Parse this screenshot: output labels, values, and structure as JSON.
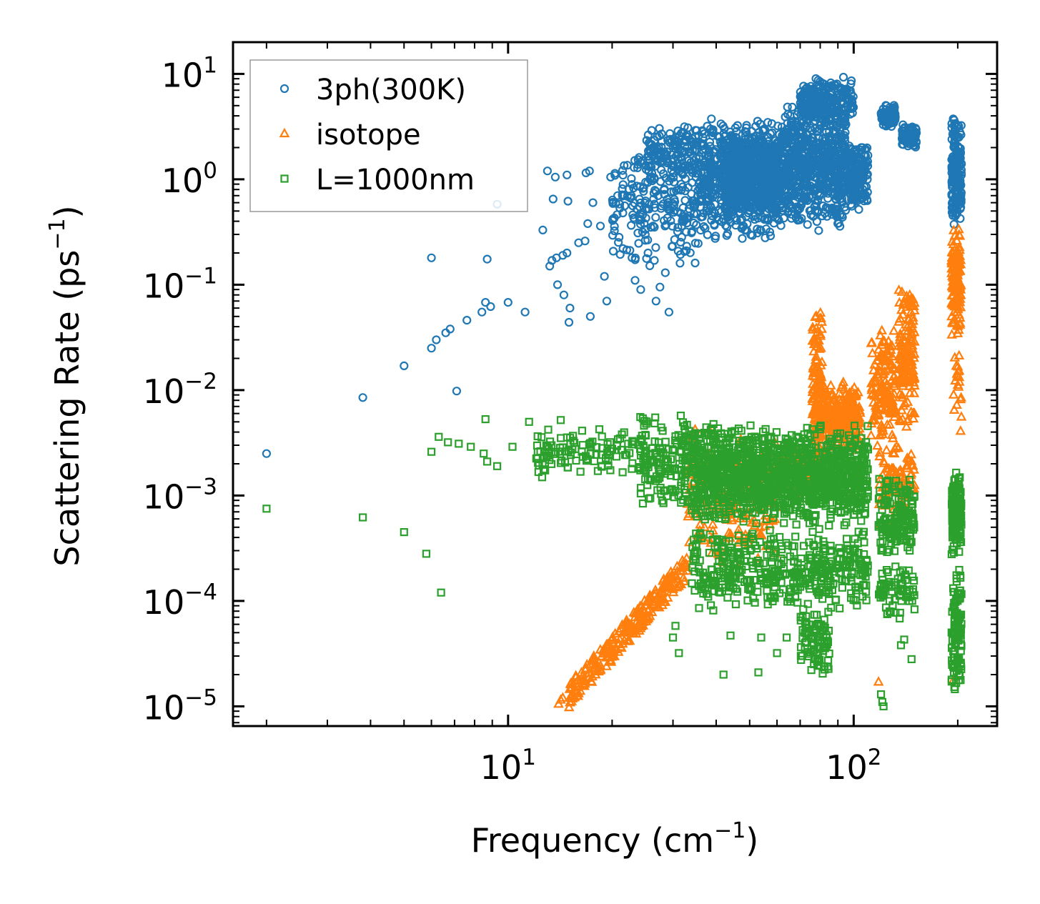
{
  "chart_data": {
    "type": "scatter",
    "xscale": "log",
    "yscale": "log",
    "xlabel": "Frequency (cm",
    "xlabel_sup": "−1",
    "xlabel_end": ")",
    "ylabel": "Scattering Rate (ps",
    "ylabel_sup": "−1",
    "ylabel_end": ")",
    "xlim": [
      1.6,
      260
    ],
    "ylim": [
      6.5e-06,
      20
    ],
    "x_ticks": [
      {
        "value": 10,
        "base": "10",
        "exp": "1"
      },
      {
        "value": 100,
        "base": "10",
        "exp": "2"
      }
    ],
    "y_ticks": [
      {
        "value": 10,
        "base": "10",
        "exp": "1"
      },
      {
        "value": 1,
        "base": "10",
        "exp": "0"
      },
      {
        "value": 0.1,
        "base": "10",
        "exp": "−1"
      },
      {
        "value": 0.01,
        "base": "10",
        "exp": "−2"
      },
      {
        "value": 0.001,
        "base": "10",
        "exp": "−3"
      },
      {
        "value": 0.0001,
        "base": "10",
        "exp": "−4"
      },
      {
        "value": 1e-05,
        "base": "10",
        "exp": "−5"
      }
    ],
    "legend_position": "top-left",
    "series": [
      {
        "name": "3ph(300K)",
        "marker": "circle",
        "color": "#1f77b4",
        "points": [
          [
            2.0,
            0.0025
          ],
          [
            3.8,
            0.0085
          ],
          [
            5.0,
            0.017
          ],
          [
            6.0,
            0.025
          ],
          [
            6.2,
            0.03
          ],
          [
            6.6,
            0.035
          ],
          [
            6.8,
            0.038
          ],
          [
            7.6,
            0.046
          ],
          [
            8.4,
            0.055
          ],
          [
            8.6,
            0.068
          ],
          [
            8.9,
            0.062
          ],
          [
            10.0,
            0.068
          ],
          [
            11.2,
            0.055
          ],
          [
            7.1,
            0.0098
          ],
          [
            6.0,
            0.18
          ],
          [
            8.7,
            0.175
          ],
          [
            9.3,
            0.58
          ],
          [
            12.6,
            0.33
          ],
          [
            13.2,
            0.15
          ],
          [
            13.4,
            0.17
          ],
          [
            13.8,
            0.18
          ],
          [
            14.4,
            0.19
          ],
          [
            14.8,
            0.2
          ],
          [
            13.9,
            0.1
          ],
          [
            14.5,
            0.08
          ],
          [
            15.1,
            0.06
          ],
          [
            15.0,
            0.044
          ],
          [
            17.3,
            0.05
          ],
          [
            19.3,
            0.07
          ],
          [
            13.0,
            1.2
          ],
          [
            13.5,
            0.65
          ],
          [
            13.7,
            1.05
          ],
          [
            14.8,
            1.1
          ],
          [
            14.9,
            0.62
          ],
          [
            16.0,
            0.25
          ],
          [
            16.8,
            1.15
          ],
          [
            17.2,
            1.2
          ],
          [
            17.6,
            0.6
          ],
          [
            16.7,
            0.26
          ],
          [
            17.0,
            0.38
          ],
          [
            18.5,
            0.36
          ],
          [
            19.0,
            0.12
          ],
          [
            19.8,
            1.05
          ],
          [
            20.3,
            0.43
          ],
          [
            21.5,
            0.22
          ],
          [
            23.3,
            0.11
          ],
          [
            24.2,
            0.09
          ],
          [
            25.4,
            0.2
          ],
          [
            26.5,
            0.17
          ],
          [
            28.5,
            0.13
          ],
          [
            29.2,
            0.055
          ],
          [
            27.5,
            0.095
          ],
          [
            26.8,
            0.07
          ],
          [
            29.8,
            0.23
          ]
        ],
        "clusters": [
          {
            "x": [
              20,
              36
            ],
            "logy": [
              -0.9,
              0.4
            ],
            "n": 220
          },
          {
            "x": [
              25,
              36
            ],
            "logy": [
              -0.05,
              0.55
            ],
            "n": 150
          },
          {
            "x": [
              36,
              62
            ],
            "logy": [
              -0.6,
              0.6
            ],
            "n": 650
          },
          {
            "x": [
              42,
              60
            ],
            "logy": [
              -0.35,
              0.45
            ],
            "n": 500
          },
          {
            "x": [
              62,
              95
            ],
            "logy": [
              -0.5,
              0.75
            ],
            "n": 650
          },
          {
            "x": [
              70,
              100
            ],
            "logy": [
              0.5,
              0.98
            ],
            "n": 260
          },
          {
            "x": [
              95,
              110
            ],
            "logy": [
              -0.3,
              0.35
            ],
            "n": 200
          },
          {
            "x": [
              120,
              132
            ],
            "logy": [
              0.48,
              0.72
            ],
            "n": 90
          },
          {
            "x": [
              138,
              152
            ],
            "logy": [
              0.3,
              0.52
            ],
            "n": 70
          },
          {
            "x": [
              192,
              205
            ],
            "logy": [
              -0.5,
              0.65
            ],
            "n": 170
          }
        ]
      },
      {
        "name": "isotope",
        "marker": "triangle",
        "color": "#ff7f0e",
        "points": [
          [
            14.0,
            1.05e-05
          ],
          [
            14.2,
            1.15e-05
          ],
          [
            14.4,
            1.2e-05
          ],
          [
            15.3,
            1.3e-05
          ],
          [
            118,
            1.7e-05
          ],
          [
            122,
            0.0021
          ],
          [
            125,
            0.0018
          ],
          [
            128,
            0.0017
          ],
          [
            194,
            1.75e-05
          ]
        ],
        "clusters": [
          {
            "x": [
              15,
              33
            ],
            "logy": "line",
            "slope": 3.6,
            "ref_x": 20,
            "ref_logy": -4.45,
            "spread": 0.12,
            "n": 260
          },
          {
            "x": [
              33,
              60
            ],
            "logy": [
              -3.7,
              -2.3
            ],
            "n": 200
          },
          {
            "x": [
              60,
              80
            ],
            "logy": [
              -3.0,
              -2.5
            ],
            "n": 120
          },
          {
            "x": [
              76,
              81
            ],
            "logy": [
              -2.9,
              -1.15
            ],
            "n": 150
          },
          {
            "x": [
              80,
              105
            ],
            "logy": [
              -2.6,
              -1.9
            ],
            "n": 250
          },
          {
            "x": [
              112,
              132
            ],
            "logy": [
              -2.6,
              -1.35
            ],
            "n": 160
          },
          {
            "x": [
              135,
              150
            ],
            "logy": [
              -2.4,
              -0.92
            ],
            "n": 150
          },
          {
            "x": [
              118,
              150
            ],
            "logy": [
              -3.3,
              -2.5
            ],
            "n": 90
          },
          {
            "x": [
              192,
              204
            ],
            "logy": [
              -1.5,
              -0.45
            ],
            "n": 130
          },
          {
            "x": [
              194,
              205
            ],
            "logy": [
              -2.4,
              -1.5
            ],
            "n": 20
          }
        ]
      },
      {
        "name": "L=1000nm",
        "marker": "square",
        "color": "#2ca02c",
        "points": [
          [
            2.0,
            0.00075
          ],
          [
            3.8,
            0.00062
          ],
          [
            5.0,
            0.00045
          ],
          [
            5.8,
            0.00028
          ],
          [
            6.4,
            0.00012
          ],
          [
            6.0,
            0.0026
          ],
          [
            6.3,
            0.0036
          ],
          [
            6.7,
            0.0032
          ],
          [
            7.2,
            0.0031
          ],
          [
            7.8,
            0.0029
          ],
          [
            8.5,
            0.0025
          ],
          [
            8.7,
            0.0021
          ],
          [
            9.3,
            0.0019
          ],
          [
            10.3,
            0.0029
          ],
          [
            11.5,
            0.005
          ],
          [
            8.6,
            0.0053
          ],
          [
            14.2,
            0.0052
          ],
          [
            30,
            4.5e-05
          ],
          [
            30.5,
            5.8e-05
          ],
          [
            31.2,
            3.2e-05
          ],
          [
            42,
            2e-05
          ],
          [
            44,
            4.7e-05
          ],
          [
            53,
            2.1e-05
          ],
          [
            54,
            4.5e-05
          ],
          [
            60,
            3.2e-05
          ],
          [
            64,
            4.5e-05
          ],
          [
            71,
            3e-05
          ],
          [
            120,
            1.3e-05
          ],
          [
            121,
            1.1e-05
          ],
          [
            122,
            1e-05
          ],
          [
            137,
            3.8e-05
          ],
          [
            140,
            4.3e-05
          ],
          [
            147,
            2.8e-05
          ]
        ],
        "clusters": [
          {
            "x": [
              12,
              24
            ],
            "logy": [
              -2.85,
              -2.35
            ],
            "n": 110
          },
          {
            "x": [
              24,
              34
            ],
            "logy": [
              -3.15,
              -2.2
            ],
            "n": 160
          },
          {
            "x": [
              34,
              110
            ],
            "logy": [
              -3.3,
              -2.3
            ],
            "n": 1300
          },
          {
            "x": [
              34,
              110
            ],
            "logy": [
              -4.1,
              -3.3
            ],
            "n": 450
          },
          {
            "x": [
              70,
              85
            ],
            "logy": [
              -4.75,
              -4.0
            ],
            "n": 90
          },
          {
            "x": [
              118,
              150
            ],
            "logy": [
              -3.6,
              -2.8
            ],
            "n": 160
          },
          {
            "x": [
              118,
              150
            ],
            "logy": [
              -4.2,
              -3.6
            ],
            "n": 70
          },
          {
            "x": [
              192,
              205
            ],
            "logy": [
              -3.6,
              -2.7
            ],
            "n": 150
          },
          {
            "x": [
              192,
              205
            ],
            "logy": [
              -5.0,
              -3.6
            ],
            "n": 110
          }
        ]
      }
    ]
  }
}
